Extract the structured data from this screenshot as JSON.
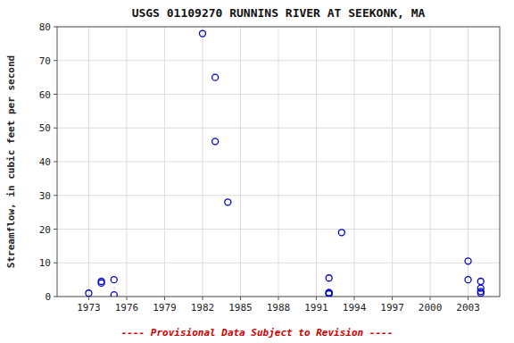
{
  "chart_data": {
    "type": "scatter",
    "title": "USGS 01109270 RUNNINS RIVER AT SEEKONK, MA",
    "y_label": "Streamflow, in cubic feet per second",
    "x": [
      1973,
      1974,
      1974,
      1975,
      1975,
      1982,
      1983,
      1983,
      1984,
      1992,
      1992,
      1992,
      1992,
      1993,
      2003,
      2003,
      2004,
      2004,
      2004,
      2004
    ],
    "values": [
      1.0,
      4.5,
      4.0,
      5.0,
      0.5,
      78.0,
      65.0,
      46.0,
      28.0,
      5.5,
      1.2,
      0.8,
      1.0,
      19.0,
      10.5,
      5.0,
      4.5,
      2.5,
      1.5,
      1.0
    ],
    "color": "#0000cc",
    "marker": "open-circle",
    "xlim": [
      1970.5,
      2005.5
    ],
    "ylim": [
      0,
      80
    ],
    "xticks": [
      1973,
      1976,
      1979,
      1982,
      1985,
      1988,
      1991,
      1994,
      1997,
      2000,
      2003
    ],
    "yticks": [
      0,
      10,
      20,
      30,
      40,
      50,
      60,
      70,
      80
    ],
    "grid": true,
    "annotations": [
      {
        "text": "---- Provisional Data Subject to Revision ----",
        "color": "#cc0000"
      }
    ]
  }
}
